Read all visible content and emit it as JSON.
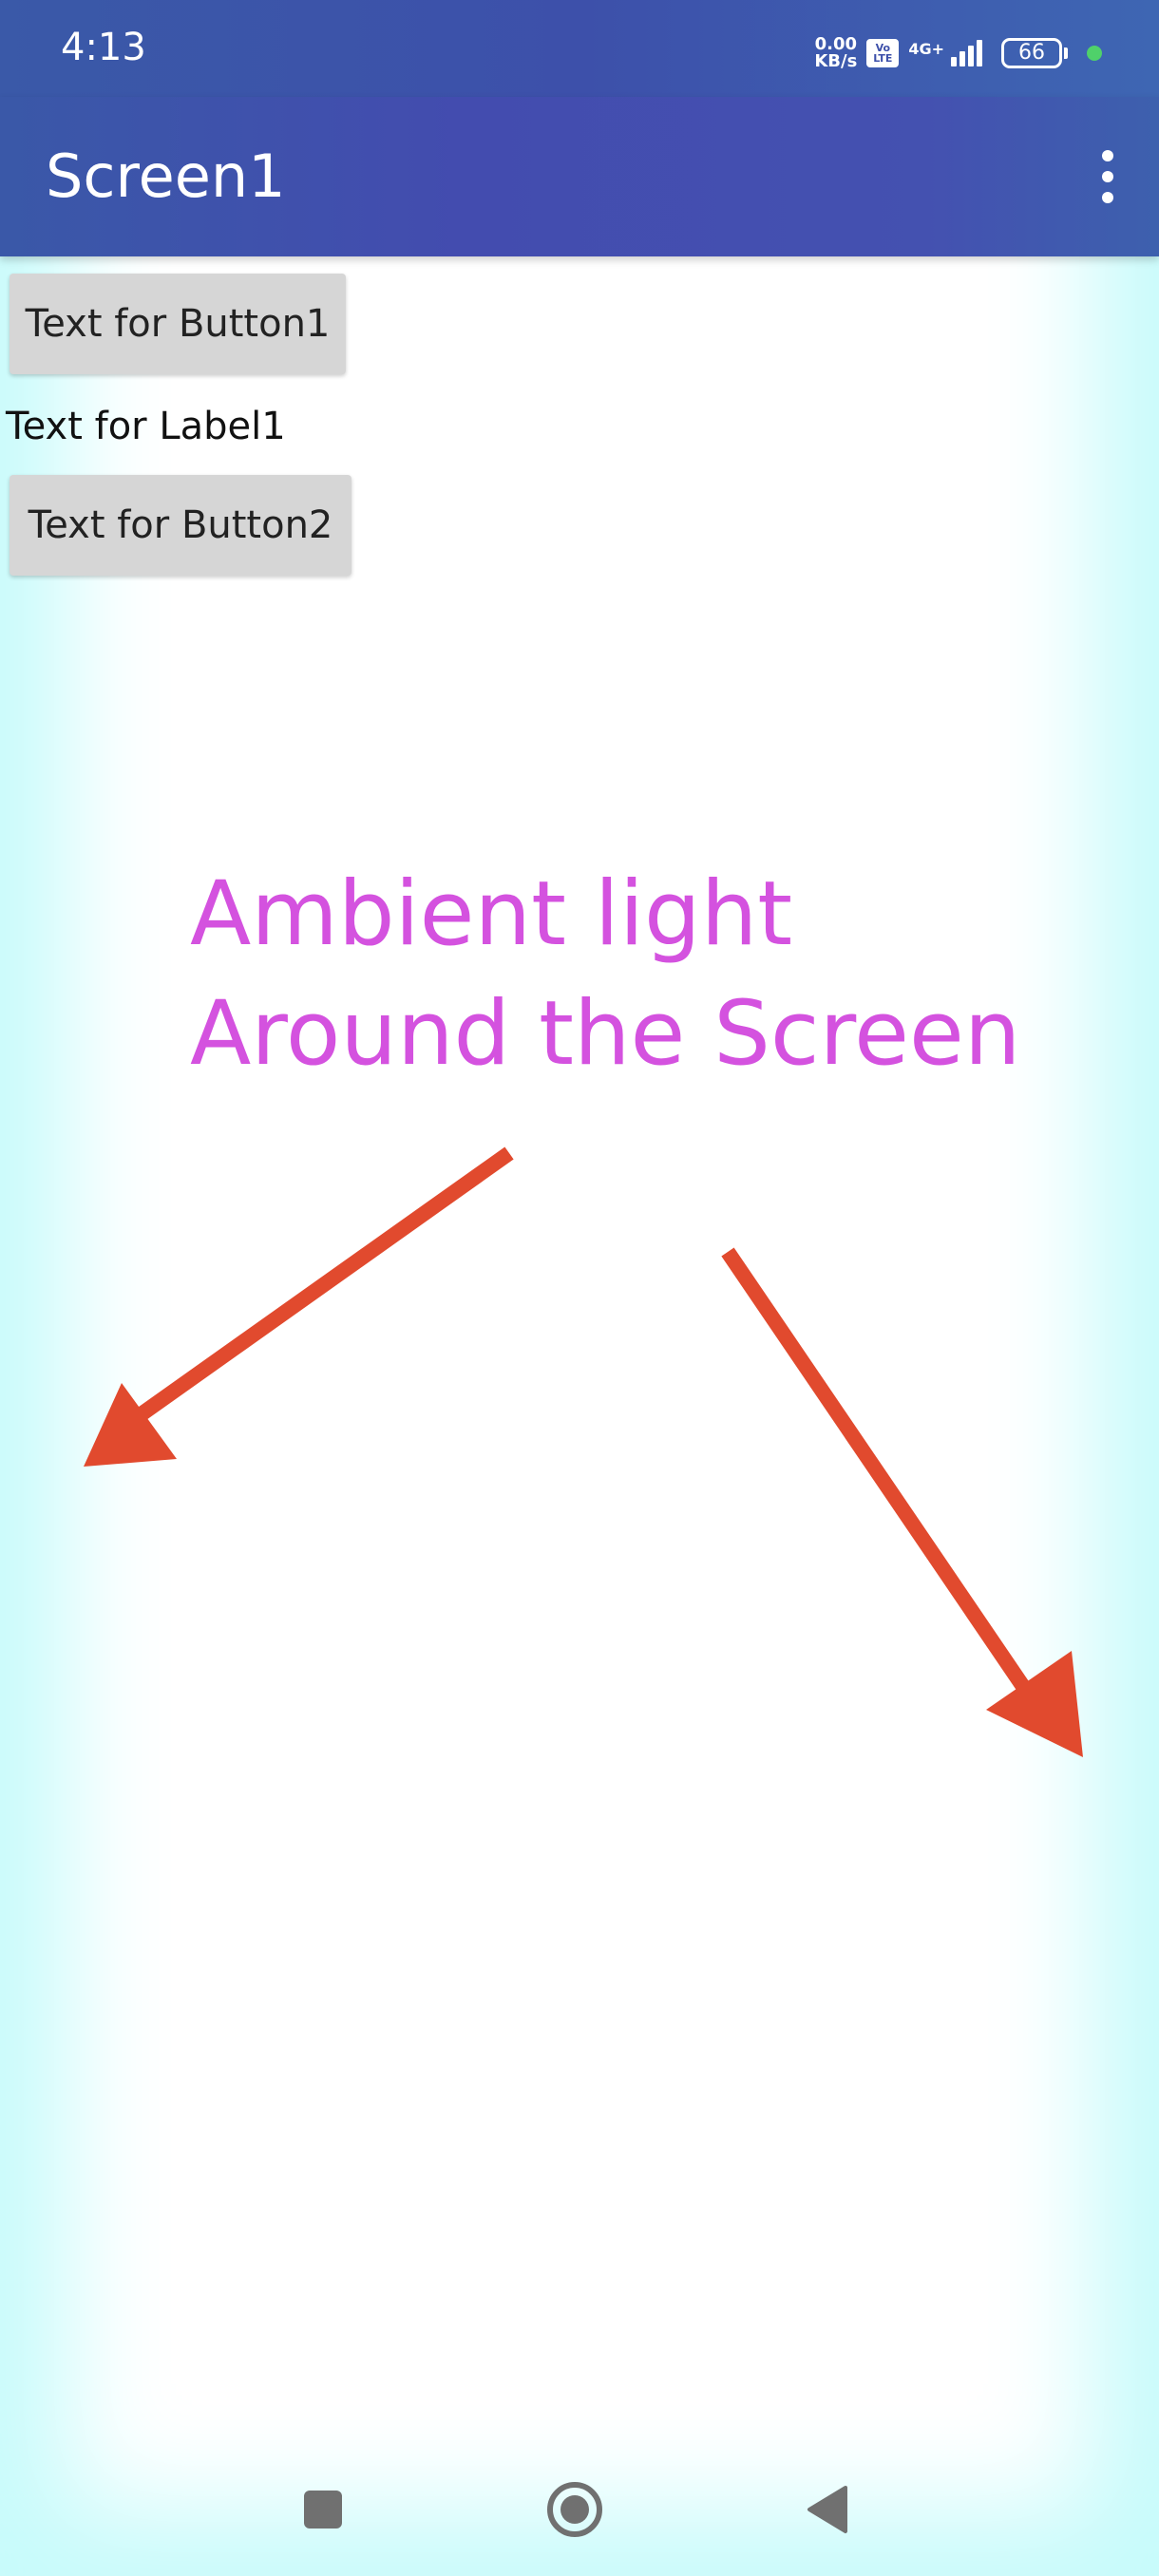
{
  "status_bar": {
    "time": "4:13",
    "net_speed_value": "0.00",
    "net_speed_unit": "KB/s",
    "volte_top": "Vo",
    "volte_bottom": "LTE",
    "network_type": "4G+",
    "battery_level": "66",
    "icons": [
      "volte-icon",
      "signal-icon",
      "battery-icon",
      "privacy-dot-icon"
    ],
    "dot_color": "#4fd16a"
  },
  "app_bar": {
    "title": "Screen1",
    "menu_icon": "more-vert-icon"
  },
  "components": {
    "button1_label": "Text for Button1",
    "label1_text": "Text for Label1",
    "button2_label": "Text for Button2"
  },
  "annotation": {
    "line1": "Ambient light",
    "line2": "Around the Screen",
    "text_color": "#d452df",
    "arrow_color": "#e14a2e"
  },
  "nav_bar": {
    "buttons": [
      "recent-apps-icon",
      "home-icon",
      "back-icon"
    ]
  },
  "colors": {
    "app_bar": "#434caf",
    "ambient_glow": "#c7fbfb",
    "button_bg": "#d6d6d6"
  }
}
